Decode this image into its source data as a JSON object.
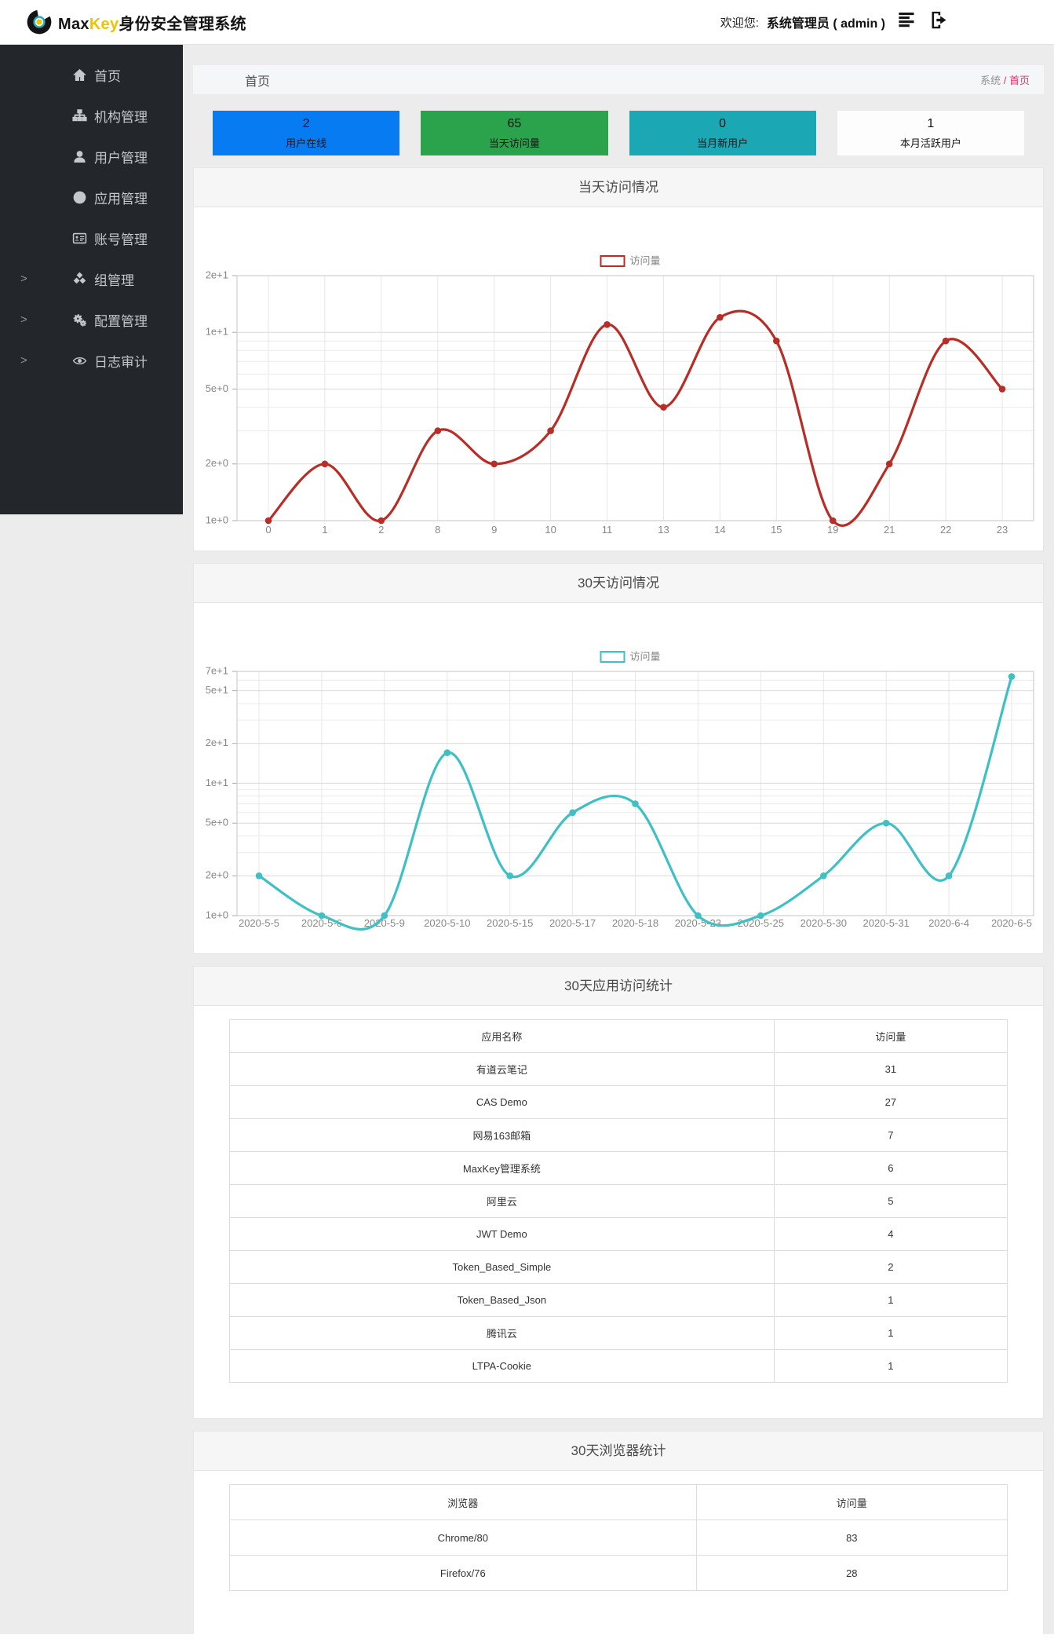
{
  "navbar": {
    "brand_max": "Max",
    "brand_key": "Key",
    "brand_suffix": "身份安全管理系统",
    "welcome_label": "欢迎您:",
    "user_label": "系统管理员 ( admin )",
    "icons": [
      "align-justify-icon",
      "sign-out-icon"
    ]
  },
  "colors": {
    "accent": "#e0366e",
    "brand_yellow": "#f2c200",
    "logo_teal": "#2aa9b8",
    "logo_yellow": "#e6c70f",
    "sidebar_bg": "#23272c",
    "chart_red": "#b92d27",
    "chart_teal": "#3ec0c4"
  },
  "sidebar": {
    "expand_glyph": ">",
    "items": [
      {
        "id": "home",
        "icon": "home-icon",
        "label": "首页",
        "expandable": false
      },
      {
        "id": "org",
        "icon": "sitemap-icon",
        "label": "机构管理",
        "expandable": false
      },
      {
        "id": "user",
        "icon": "user-icon",
        "label": "用户管理",
        "expandable": false
      },
      {
        "id": "app",
        "icon": "globe-icon",
        "label": "应用管理",
        "expandable": false
      },
      {
        "id": "account",
        "icon": "idcard-icon",
        "label": "账号管理",
        "expandable": false
      },
      {
        "id": "group",
        "icon": "cubes-icon",
        "label": "组管理",
        "expandable": true
      },
      {
        "id": "config",
        "icon": "cogs-icon",
        "label": "配置管理",
        "expandable": true
      },
      {
        "id": "audit",
        "icon": "eye-icon",
        "label": "日志审计",
        "expandable": true
      }
    ]
  },
  "page": {
    "title": "首页",
    "breadcrumb_root": "系统",
    "breadcrumb_sep": "/",
    "breadcrumb_current": "首页"
  },
  "stat_cards": [
    {
      "id": "online-users",
      "value": "2",
      "label": "用户在线",
      "bg": "#077bf2"
    },
    {
      "id": "today-visits",
      "value": "65",
      "label": "当天访问量",
      "bg": "#2ba24c"
    },
    {
      "id": "month-new-users",
      "value": "0",
      "label": "当月新用户",
      "bg": "#1ba7b4"
    },
    {
      "id": "month-active-users",
      "value": "1",
      "label": "本月活跃用户",
      "bg": "#fdfdfd"
    }
  ],
  "chart_data": [
    {
      "type": "line",
      "title": "当天访问情况",
      "legend": "访问量",
      "legend_position": "top-center",
      "color": "#b92d27",
      "grid": true,
      "y_scale": "log",
      "ylim": [
        1,
        20
      ],
      "categories": [
        "0",
        "1",
        "2",
        "8",
        "9",
        "10",
        "11",
        "13",
        "14",
        "15",
        "19",
        "21",
        "22",
        "23"
      ],
      "values": [
        1,
        2,
        1,
        3,
        2,
        3,
        11,
        4,
        12,
        9,
        1,
        2,
        9,
        5
      ],
      "y_ticks": [
        {
          "value": 20,
          "label": "2e+1"
        },
        {
          "value": 10,
          "label": "1e+1"
        },
        {
          "value": 5,
          "label": "5e+0"
        },
        {
          "value": 2,
          "label": "2e+0"
        },
        {
          "value": 1,
          "label": "1e+0"
        }
      ],
      "minor_grid_values": [
        3,
        4,
        6,
        7,
        8,
        9
      ]
    },
    {
      "type": "line",
      "title": "30天访问情况",
      "legend": "访问量",
      "legend_position": "top-center",
      "color": "#3ec0c4",
      "grid": true,
      "y_scale": "log",
      "ylim": [
        1,
        70
      ],
      "categories": [
        "2020-5-5",
        "2020-5-6",
        "2020-5-9",
        "2020-5-10",
        "2020-5-15",
        "2020-5-17",
        "2020-5-18",
        "2020-5-23",
        "2020-5-25",
        "2020-5-30",
        "2020-5-31",
        "2020-6-4",
        "2020-6-5"
      ],
      "values": [
        2,
        1,
        1,
        17,
        2,
        6,
        7,
        1,
        1,
        2,
        5,
        2,
        64
      ],
      "y_ticks": [
        {
          "value": 70,
          "label": "7e+1"
        },
        {
          "value": 50,
          "label": "5e+1"
        },
        {
          "value": 20,
          "label": "2e+1"
        },
        {
          "value": 10,
          "label": "1e+1"
        },
        {
          "value": 5,
          "label": "5e+0"
        },
        {
          "value": 2,
          "label": "2e+0"
        },
        {
          "value": 1,
          "label": "1e+0"
        }
      ],
      "minor_grid_values": [
        3,
        4,
        6,
        7,
        8,
        9,
        30,
        40,
        60
      ]
    }
  ],
  "tables": [
    {
      "id": "app-visits",
      "title": "30天应用访问统计",
      "headers": [
        "应用名称",
        "访问量"
      ],
      "col_widths": [
        "70%",
        "30%"
      ],
      "rows": [
        [
          "有道云笔记",
          "31"
        ],
        [
          "CAS Demo",
          "27"
        ],
        [
          "网易163邮箱",
          "7"
        ],
        [
          "MaxKey管理系统",
          "6"
        ],
        [
          "阿里云",
          "5"
        ],
        [
          "JWT Demo",
          "4"
        ],
        [
          "Token_Based_Simple",
          "2"
        ],
        [
          "Token_Based_Json",
          "1"
        ],
        [
          "腾讯云",
          "1"
        ],
        [
          "LTPA-Cookie",
          "1"
        ]
      ]
    },
    {
      "id": "browser-stats",
      "title": "30天浏览器统计",
      "headers": [
        "浏览器",
        "访问量"
      ],
      "col_widths": [
        "60%",
        "40%"
      ],
      "rows": [
        [
          "Chrome/80",
          "83"
        ],
        [
          "Firefox/76",
          "28"
        ]
      ]
    }
  ]
}
